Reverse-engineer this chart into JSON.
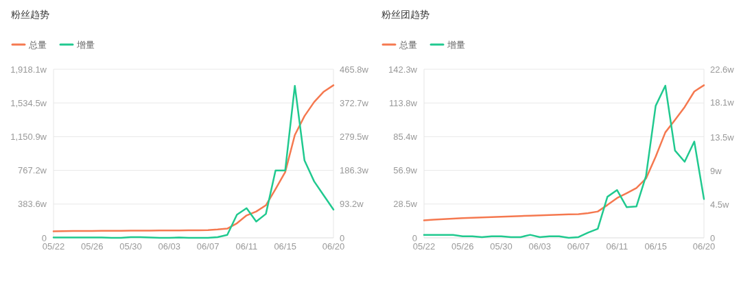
{
  "chart_data": [
    {
      "type": "line",
      "title": "粉丝趋势",
      "categories": [
        "05/22",
        null,
        null,
        null,
        "05/26",
        null,
        null,
        null,
        "05/30",
        null,
        null,
        null,
        "06/03",
        null,
        null,
        null,
        "06/07",
        null,
        null,
        null,
        "06/11",
        null,
        null,
        null,
        "06/15",
        null,
        null,
        null,
        null,
        "06/20"
      ],
      "series": [
        {
          "name": "总量",
          "color": "#f5784f",
          "values": [
            75,
            76,
            77,
            78,
            78,
            79,
            79,
            80,
            81,
            81,
            82,
            83,
            83,
            84,
            85,
            86,
            88,
            95,
            105,
            165,
            255,
            299,
            370,
            555,
            748,
            1170,
            1385,
            1545,
            1663,
            1736
          ]
        },
        {
          "name": "增量",
          "color": "#20c98f",
          "axis": "y2",
          "values": [
            1,
            1,
            1,
            1,
            1,
            1,
            0,
            0,
            2,
            2,
            1,
            0,
            0,
            1,
            0,
            0,
            0,
            2,
            8,
            64,
            82,
            45,
            66,
            186,
            186,
            420,
            214,
            156,
            117,
            78
          ]
        }
      ],
      "ylim": [
        0,
        1918.1
      ],
      "yticks": [
        0,
        {
          "value": 383.6,
          "label": "383.6w"
        },
        {
          "value": 767.2,
          "label": "767.2w"
        },
        {
          "value": 1150.9,
          "label": "1,150.9w"
        },
        {
          "value": 1534.5,
          "label": "1,534.5w"
        },
        {
          "value": 1918.1,
          "label": "1,918.1w"
        }
      ],
      "y2lim": [
        0,
        465.8
      ],
      "y2ticks": [
        0,
        {
          "value": 93.2,
          "label": "93.2w"
        },
        {
          "value": 186.3,
          "label": "186.3w"
        },
        {
          "value": 279.5,
          "label": "279.5w"
        },
        {
          "value": 372.7,
          "label": "372.7w"
        },
        {
          "value": 465.8,
          "label": "465.8w"
        }
      ],
      "grid": "y",
      "legend": "top left",
      "marker": "none"
    },
    {
      "type": "line",
      "title": "粉丝团趋势",
      "categories": [
        "05/22",
        null,
        null,
        null,
        "05/26",
        null,
        null,
        null,
        "05/30",
        null,
        null,
        null,
        "06/03",
        null,
        null,
        null,
        "06/07",
        null,
        null,
        null,
        "06/11",
        null,
        null,
        null,
        "06/15",
        null,
        null,
        null,
        null,
        "06/20"
      ],
      "series": [
        {
          "name": "总量",
          "color": "#f5784f",
          "values": [
            14.8,
            15.3,
            15.7,
            16.2,
            16.6,
            16.9,
            17.2,
            17.5,
            17.8,
            18.1,
            18.4,
            18.7,
            19.0,
            19.3,
            19.5,
            19.8,
            20.0,
            20.8,
            22.2,
            27.7,
            33.6,
            37.7,
            42.0,
            50.1,
            68.5,
            89.0,
            99.5,
            110.4,
            123.5,
            128.8
          ]
        },
        {
          "name": "增量",
          "color": "#20c98f",
          "axis": "y2",
          "values": [
            0.4,
            0.4,
            0.4,
            0.4,
            0.2,
            0.2,
            0.1,
            0.2,
            0.2,
            0.1,
            0.1,
            0.4,
            0.1,
            0.2,
            0.2,
            0,
            0.1,
            0.7,
            1.2,
            5.5,
            6.4,
            4.1,
            4.2,
            8.3,
            17.7,
            20.4,
            11.7,
            10.2,
            12.9,
            5.2
          ]
        }
      ],
      "ylim": [
        0,
        142.3
      ],
      "yticks": [
        0,
        {
          "value": 28.5,
          "label": "28.5w"
        },
        {
          "value": 56.9,
          "label": "56.9w"
        },
        {
          "value": 85.4,
          "label": "85.4w"
        },
        {
          "value": 113.8,
          "label": "113.8w"
        },
        {
          "value": 142.3,
          "label": "142.3w"
        }
      ],
      "y2lim": [
        0,
        22.6
      ],
      "y2ticks": [
        0,
        {
          "value": 4.5,
          "label": "4.5w"
        },
        {
          "value": 9,
          "label": "9w"
        },
        {
          "value": 13.5,
          "label": "13.5w"
        },
        {
          "value": 18.1,
          "label": "18.1w"
        },
        {
          "value": 22.6,
          "label": "22.6w"
        }
      ],
      "grid": "y",
      "legend": "top left",
      "marker": "none"
    }
  ]
}
